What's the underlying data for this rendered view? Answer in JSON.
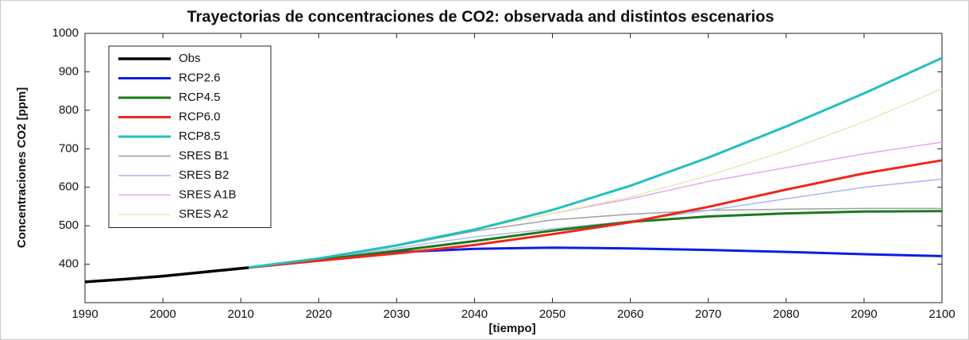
{
  "chart_data": {
    "type": "line",
    "title": "Trayectorias de concentraciones de CO2: observada and distintos escenarios",
    "xlabel": "[tiempo]",
    "ylabel": "Concentraciones CO2 [ppm]",
    "xlim": [
      1990,
      2100
    ],
    "xticks": [
      1990,
      2000,
      2010,
      2020,
      2030,
      2040,
      2050,
      2060,
      2070,
      2080,
      2090,
      2100
    ],
    "ylim": [
      300,
      1000
    ],
    "yticks": [
      400,
      500,
      600,
      700,
      800,
      900,
      1000
    ],
    "grid": false,
    "legend": "upper left",
    "series": [
      {
        "name": "Obs",
        "color": "#000000",
        "line_width": 3.5,
        "x": [
          1990,
          1995,
          2000,
          2005,
          2007,
          2008,
          2009,
          2010,
          2011
        ],
        "values": [
          354,
          361,
          369,
          379,
          383,
          385,
          387,
          389,
          391
        ]
      },
      {
        "name": "RCP2.6",
        "color": "#0a1ee8",
        "line_width": 3,
        "x": [
          2010,
          2020,
          2030,
          2040,
          2050,
          2060,
          2070,
          2080,
          2090,
          2100
        ],
        "values": [
          389,
          412,
          431,
          440,
          443,
          441,
          437,
          432,
          426,
          421
        ]
      },
      {
        "name": "RCP4.5",
        "color": "#1a7a1a",
        "line_width": 3,
        "x": [
          2010,
          2020,
          2030,
          2040,
          2050,
          2060,
          2070,
          2080,
          2090,
          2100
        ],
        "values": [
          389,
          411,
          435,
          460,
          487,
          510,
          524,
          532,
          537,
          538
        ]
      },
      {
        "name": "RCP6.0",
        "color": "#f0261e",
        "line_width": 3,
        "x": [
          2010,
          2020,
          2030,
          2040,
          2050,
          2060,
          2070,
          2080,
          2090,
          2100
        ],
        "values": [
          389,
          409,
          428,
          450,
          478,
          509,
          549,
          594,
          636,
          670
        ]
      },
      {
        "name": "RCP8.5",
        "color": "#22c0c0",
        "line_width": 3,
        "x": [
          2010,
          2020,
          2030,
          2040,
          2050,
          2060,
          2070,
          2080,
          2090,
          2100
        ],
        "values": [
          389,
          415,
          449,
          490,
          541,
          604,
          677,
          758,
          844,
          936
        ]
      },
      {
        "name": "SRES B1",
        "color": "#a0a0a0",
        "line_width": 1.5,
        "x": [
          2010,
          2020,
          2030,
          2040,
          2050,
          2060,
          2070,
          2080,
          2090,
          2100
        ],
        "values": [
          389,
          414,
          447,
          486,
          515,
          530,
          540,
          543,
          545,
          545
        ]
      },
      {
        "name": "SRES B2",
        "color": "#a8b8f0",
        "line_width": 1.5,
        "x": [
          2010,
          2020,
          2030,
          2040,
          2050,
          2060,
          2070,
          2080,
          2090,
          2100
        ],
        "values": [
          389,
          413,
          442,
          471,
          492,
          512,
          540,
          570,
          600,
          621
        ]
      },
      {
        "name": "SRES A1B",
        "color": "#e2a8f0",
        "line_width": 1.5,
        "x": [
          2010,
          2020,
          2030,
          2040,
          2050,
          2060,
          2070,
          2080,
          2090,
          2100
        ],
        "values": [
          389,
          416,
          450,
          490,
          532,
          570,
          615,
          651,
          687,
          717
        ]
      },
      {
        "name": "SRES A2",
        "color": "#efe6b0",
        "line_width": 1.5,
        "x": [
          2010,
          2020,
          2030,
          2040,
          2050,
          2060,
          2070,
          2080,
          2090,
          2100
        ],
        "values": [
          389,
          415,
          448,
          490,
          532,
          575,
          630,
          695,
          770,
          856
        ]
      }
    ]
  }
}
